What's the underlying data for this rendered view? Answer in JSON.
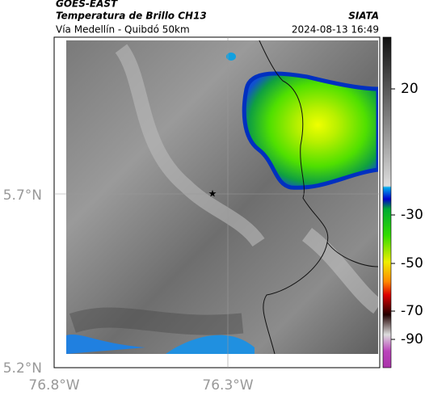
{
  "header": {
    "source": "GOES-EAST",
    "product": "Temperatura de Brillo CH13",
    "region": "Vía Medellín - Quibdó 50km",
    "agency": "SIATA",
    "datetime": "2024-08-13 16:49"
  },
  "map": {
    "lat_labels": [
      "5.7°N",
      "5.2°N"
    ],
    "lon_labels": [
      "76.8°W",
      "76.3°W"
    ]
  },
  "colorbar": {
    "ticks": [
      20,
      -30,
      -50,
      -70,
      -90
    ]
  }
}
